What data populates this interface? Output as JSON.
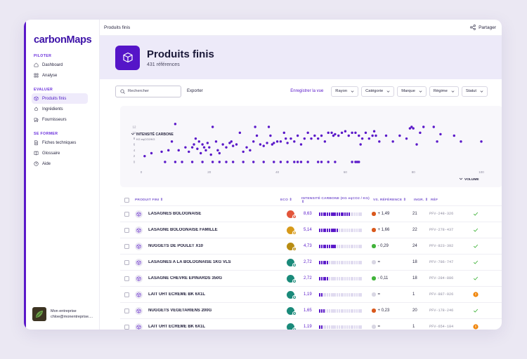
{
  "app": {
    "logo": "carbonMaps"
  },
  "sidebar": {
    "sections": [
      {
        "label": "PILOTER",
        "items": [
          {
            "label": "Dashboard",
            "icon": "home-icon"
          },
          {
            "label": "Analyse",
            "icon": "grid-icon"
          }
        ]
      },
      {
        "label": "EVALUER",
        "items": [
          {
            "label": "Produits finis",
            "icon": "box-icon",
            "active": true
          },
          {
            "label": "Ingrédients",
            "icon": "ingredients-icon"
          },
          {
            "label": "Fournisseurs",
            "icon": "supplier-icon"
          }
        ]
      },
      {
        "label": "SE FORMER",
        "items": [
          {
            "label": "Fiches techniques",
            "icon": "sheet-icon"
          },
          {
            "label": "Glossaire",
            "icon": "glossary-icon"
          },
          {
            "label": "Aide",
            "icon": "help-icon"
          }
        ]
      }
    ],
    "user": {
      "company": "Mon entreprise",
      "email": "chloe@monentreprise...."
    }
  },
  "topbar": {
    "title": "Produits finis",
    "share_label": "Partager"
  },
  "hero": {
    "title": "Produits finis",
    "subtitle": "431 références"
  },
  "toolbar": {
    "search_placeholder": "Rechercher",
    "export_label": "Exporter",
    "save_view_label": "Enregistrer la vue",
    "filters": [
      "Rayon",
      "Catégorie",
      "Marque",
      "Régime",
      "Statut"
    ]
  },
  "chart_data": {
    "type": "scatter",
    "title": "INTENSITÉ CARBONE",
    "ylabel": "KG eqCO2/KG",
    "xlabel": "VOLUME",
    "xlim": [
      0,
      100
    ],
    "ylim": [
      0,
      12
    ],
    "xticks": [
      0,
      20,
      40,
      60,
      80,
      100
    ],
    "yticks": [
      0,
      2,
      4,
      6,
      8,
      10,
      12
    ],
    "points": [
      [
        1,
        2
      ],
      [
        3,
        3
      ],
      [
        6,
        3.5
      ],
      [
        8,
        4
      ],
      [
        9,
        7
      ],
      [
        10,
        13
      ],
      [
        11,
        4
      ],
      [
        13,
        5
      ],
      [
        14,
        3.5
      ],
      [
        15,
        5
      ],
      [
        15.5,
        6
      ],
      [
        16,
        8
      ],
      [
        16.5,
        4.5
      ],
      [
        17,
        7
      ],
      [
        17.5,
        3
      ],
      [
        18,
        6
      ],
      [
        18.5,
        5
      ],
      [
        19,
        4
      ],
      [
        19.5,
        6.5
      ],
      [
        20,
        5
      ],
      [
        20.5,
        2.5
      ],
      [
        21,
        12
      ],
      [
        22,
        7
      ],
      [
        22.5,
        4
      ],
      [
        23,
        3
      ],
      [
        24,
        6
      ],
      [
        25,
        5
      ],
      [
        26,
        6.5
      ],
      [
        26.5,
        7
      ],
      [
        27,
        5.5
      ],
      [
        28,
        6
      ],
      [
        29,
        10
      ],
      [
        30,
        3.5
      ],
      [
        31,
        5
      ],
      [
        32,
        4
      ],
      [
        33,
        7
      ],
      [
        33.5,
        12
      ],
      [
        34,
        9
      ],
      [
        35,
        6
      ],
      [
        36,
        5.5
      ],
      [
        37,
        6.5
      ],
      [
        37.5,
        12
      ],
      [
        38,
        9
      ],
      [
        38.5,
        6
      ],
      [
        39,
        6.5
      ],
      [
        40,
        7
      ],
      [
        41,
        7
      ],
      [
        42,
        10
      ],
      [
        42.5,
        8
      ],
      [
        43,
        6.5
      ],
      [
        44,
        8
      ],
      [
        45,
        7
      ],
      [
        46,
        9
      ],
      [
        47,
        6
      ],
      [
        48,
        8
      ],
      [
        49,
        10
      ],
      [
        50,
        8
      ],
      [
        51,
        9
      ],
      [
        52,
        8
      ],
      [
        53,
        9
      ],
      [
        54,
        7
      ],
      [
        55,
        10
      ],
      [
        56,
        10
      ],
      [
        56.5,
        9
      ],
      [
        57,
        9.5
      ],
      [
        58,
        9
      ],
      [
        59,
        10
      ],
      [
        60,
        10.5
      ],
      [
        61,
        9
      ],
      [
        62,
        10
      ],
      [
        63,
        10
      ],
      [
        64,
        9
      ],
      [
        64.5,
        6
      ],
      [
        65,
        8
      ],
      [
        66,
        10
      ],
      [
        67,
        8
      ],
      [
        68,
        9
      ],
      [
        68.5,
        10.5
      ],
      [
        69,
        9
      ],
      [
        70,
        7
      ],
      [
        72,
        9
      ],
      [
        74,
        7
      ],
      [
        76,
        9
      ],
      [
        78,
        8
      ],
      [
        79,
        11.5
      ],
      [
        79.5,
        12
      ],
      [
        80,
        11.5
      ],
      [
        81,
        6
      ],
      [
        82,
        10
      ],
      [
        83,
        12
      ],
      [
        86,
        12
      ],
      [
        87,
        7
      ],
      [
        88,
        9.5
      ],
      [
        92,
        9
      ],
      [
        94,
        7
      ],
      [
        100,
        7
      ],
      [
        7,
        0
      ],
      [
        10,
        0
      ],
      [
        12,
        0
      ],
      [
        15,
        0
      ],
      [
        18,
        0
      ],
      [
        21,
        0
      ],
      [
        23,
        0
      ],
      [
        25,
        0
      ],
      [
        27,
        0
      ],
      [
        30,
        0
      ],
      [
        33,
        0
      ],
      [
        36,
        0
      ],
      [
        39,
        0
      ],
      [
        41,
        0
      ],
      [
        43,
        0
      ],
      [
        45,
        0
      ],
      [
        46,
        0
      ],
      [
        47,
        0
      ],
      [
        49,
        0
      ],
      [
        52,
        0
      ],
      [
        53,
        0
      ],
      [
        55,
        0
      ],
      [
        57,
        0
      ],
      [
        62,
        0
      ],
      [
        63,
        0
      ],
      [
        63.5,
        0
      ],
      [
        64,
        0
      ]
    ]
  },
  "table": {
    "headers": {
      "product": "PRODUIT FINI ⇕",
      "eco": "ECO ⇕",
      "carbon": "INTENSITÉ CARBONE (KG eqCO2 / KG) ⇕",
      "vsref": "VS. RÉFÉRENCE ⇕",
      "ingr": "INGR. ⇕",
      "ref": "RÉF"
    },
    "rows": [
      {
        "name": "LASAGNES BOLOGNAISE",
        "eco_color": "#e2553a",
        "eco_grade": "E",
        "eco_grade_color": "#e2553a",
        "carbon": "8,63",
        "level": 1.0,
        "vs_ref": "+ 1,49",
        "vs_color": "#d9581c",
        "ingr": "21",
        "ref": "PFV-248-326",
        "status": "ok"
      },
      {
        "name": "LASAGNE BOLOGNAISE FAMILLE",
        "eco_color": "#d79a1a",
        "eco_grade": "D",
        "eco_grade_color": "#d79a1a",
        "carbon": "5,14",
        "level": 0.6,
        "vs_ref": "+ 1,66",
        "vs_color": "#d9581c",
        "ingr": "22",
        "ref": "PFV-278-437",
        "status": "ok"
      },
      {
        "name": "NUGGETS DE POULET X10",
        "eco_color": "#b88d12",
        "eco_grade": "C",
        "eco_grade_color": "#b88d12",
        "carbon": "4,73",
        "level": 0.55,
        "vs_ref": "- 0,29",
        "vs_color": "#41b33a",
        "ingr": "24",
        "ref": "PFV-823-392",
        "status": "ok"
      },
      {
        "name": "LASAGNES A LA BOLOGNAISE 1KG VLS",
        "eco_color": "#1a8a7a",
        "eco_grade": "B",
        "eco_grade_color": "#1a8a7a",
        "carbon": "2,72",
        "level": 0.32,
        "vs_ref": "=",
        "vs_color": "#d8d6e3",
        "ingr": "18",
        "ref": "PFV-786-747",
        "status": "ok"
      },
      {
        "name": "LASAGNE CHEVRE EPINARDS 350G",
        "eco_color": "#1a8a7a",
        "eco_grade": "B",
        "eco_grade_color": "#1a8a7a",
        "carbon": "2,72",
        "level": 0.32,
        "vs_ref": "- 0,11",
        "vs_color": "#41b33a",
        "ingr": "18",
        "ref": "PFV-284-886",
        "status": "ok"
      },
      {
        "name": "LAIT UHT ECREME BK 6X1L",
        "eco_color": "#1a8a7a",
        "eco_grade": "B",
        "eco_grade_color": "#1a8a7a",
        "carbon": "1,19",
        "level": 0.14,
        "vs_ref": "=",
        "vs_color": "#d8d6e3",
        "ingr": "1",
        "ref": "PFV-887-926",
        "status": "warn"
      },
      {
        "name": "NUGGETS VEGETARIENS 200G",
        "eco_color": "#1a8a7a",
        "eco_grade": "A",
        "eco_grade_color": "#1a8a7a",
        "carbon": "1,65",
        "level": 0.19,
        "vs_ref": "+ 0,23",
        "vs_color": "#d9581c",
        "ingr": "20",
        "ref": "PFV-178-246",
        "status": "ok"
      },
      {
        "name": "LAIT UHT ECREME BK 6X1L",
        "eco_color": "#1a8a7a",
        "eco_grade": "B",
        "eco_grade_color": "#1a8a7a",
        "carbon": "1,19",
        "level": 0.14,
        "vs_ref": "=",
        "vs_color": "#d8d6e3",
        "ingr": "1",
        "ref": "PFV-654-184",
        "status": "warn"
      }
    ]
  },
  "colors": {
    "accent": "#5a18c9",
    "ok": "#41b33a",
    "warn": "#f0860c"
  }
}
